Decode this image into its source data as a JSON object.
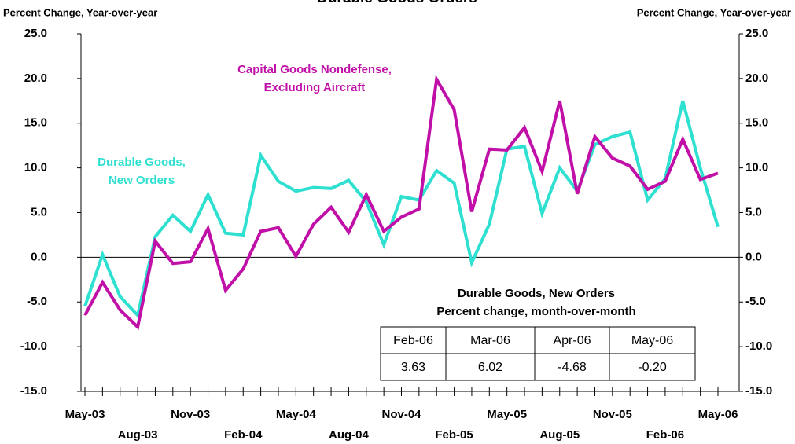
{
  "chart_data": {
    "type": "line",
    "title": "Durable Goods Orders",
    "ylabel": "Percent Change, Year-over-year",
    "y2label": "Percent Change, Year-over-year",
    "categories": [
      "May-03",
      null,
      null,
      "Aug-03",
      null,
      null,
      "Nov-03",
      null,
      null,
      "Feb-04",
      null,
      null,
      "May-04",
      null,
      null,
      "Aug-04",
      null,
      null,
      "Nov-04",
      null,
      null,
      "Feb-05",
      null,
      null,
      "May-05",
      null,
      null,
      "Aug-05",
      null,
      null,
      "Nov-05",
      null,
      null,
      "Feb-06",
      null,
      null,
      "May-06"
    ],
    "series": [
      {
        "color": "#2ee0d0",
        "values": [
          -5.5,
          0.3,
          -4.4,
          -6.5,
          2.3,
          4.7,
          2.9,
          7.0,
          2.7,
          2.5,
          11.4,
          8.5,
          7.4,
          7.8,
          7.7,
          8.6,
          6.2,
          1.4,
          6.8,
          6.4,
          9.7,
          8.3,
          -0.6,
          3.7,
          12.1,
          12.4,
          4.9,
          10.0,
          7.4,
          12.6,
          13.5,
          14.0,
          6.4,
          8.8,
          17.5,
          10.0,
          3.4
        ]
      },
      {
        "color": "#c010a8",
        "values": [
          -6.5,
          -2.8,
          -5.9,
          -7.8,
          1.8,
          -0.7,
          -0.5,
          3.2,
          -3.7,
          -1.3,
          2.9,
          3.3,
          0.1,
          3.7,
          5.6,
          2.8,
          7.0,
          2.9,
          4.5,
          5.4,
          19.9,
          16.5,
          5.1,
          12.1,
          12.0,
          14.5,
          9.6,
          17.5,
          7.1,
          13.5,
          11.1,
          10.2,
          7.6,
          8.5,
          13.2,
          8.7,
          9.4
        ]
      }
    ],
    "annotations": [
      {
        "lines": [
          "Capital Goods Nondefense,",
          "Excluding  Aircraft"
        ],
        "color": "#c010a8"
      },
      {
        "lines": [
          "Durable Goods,",
          "New Orders"
        ],
        "color": "#2ee0d0"
      }
    ],
    "ylim": [
      -15,
      25
    ],
    "yticks": [
      {
        "value": -15,
        "label": "-15.0"
      },
      {
        "value": -10,
        "label": "-10.0"
      },
      {
        "value": -5,
        "label": "-5.0"
      },
      {
        "value": 0,
        "label": "0.0"
      },
      {
        "value": 5,
        "label": "5.0"
      },
      {
        "value": 10,
        "label": "10.0"
      },
      {
        "value": 15,
        "label": "15.0"
      },
      {
        "value": 20,
        "label": "20.0"
      },
      {
        "value": 25,
        "label": "25.0"
      }
    ],
    "y2lim": [
      -15,
      25
    ],
    "y2ticks": [
      {
        "value": -15,
        "label": "-15.0"
      },
      {
        "value": -10,
        "label": "-10.0"
      },
      {
        "value": -5,
        "label": "-5.0"
      },
      {
        "value": 0,
        "label": "0.0"
      },
      {
        "value": 5,
        "label": "5.0"
      },
      {
        "value": 10,
        "label": "10.0"
      },
      {
        "value": 15,
        "label": "15.0"
      },
      {
        "value": 20,
        "label": "20.0"
      },
      {
        "value": 25,
        "label": "25.0"
      }
    ],
    "table": {
      "title": [
        "Durable Goods, New Orders",
        "Percent change, month-over-month"
      ],
      "header": [
        "Feb-06",
        "Mar-06",
        "Apr-06",
        "May-06"
      ],
      "rows": [
        [
          "3.63",
          "6.02",
          "-4.68",
          "-0.20"
        ]
      ]
    }
  }
}
